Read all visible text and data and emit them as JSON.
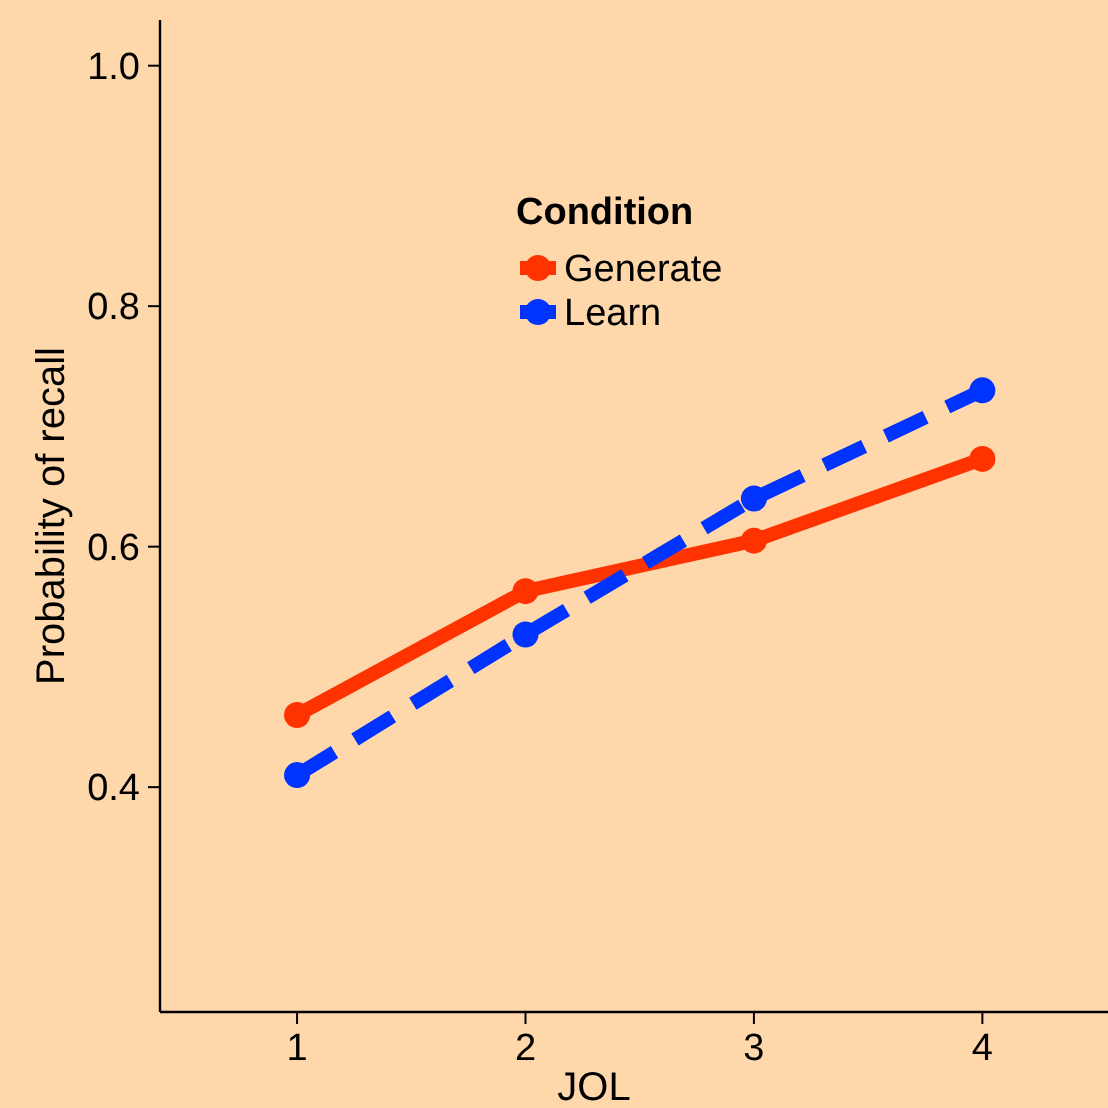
{
  "chart_data": {
    "type": "line",
    "xlabel": "JOL",
    "ylabel": "Probability of recall",
    "legend_title": "Condition",
    "x": [
      1,
      2,
      3,
      4
    ],
    "series": [
      {
        "name": "Generate",
        "color": "#ff3300",
        "values": [
          0.46,
          0.563,
          0.605,
          0.673
        ],
        "line_style": "solid"
      },
      {
        "name": "Learn",
        "color": "#0033ff",
        "values": [
          0.41,
          0.527,
          0.64,
          0.73
        ],
        "line_style": "dashed"
      }
    ],
    "xlim": [
      0.4,
      4.55
    ],
    "ylim": [
      0.213,
      1.038
    ],
    "xticks": [
      1,
      2,
      3,
      4
    ],
    "yticks": [
      0.4,
      0.6,
      0.8,
      {
        "value": 1,
        "label": "1.0"
      }
    ],
    "marker": "circle",
    "legend": "top",
    "grid": false
  }
}
